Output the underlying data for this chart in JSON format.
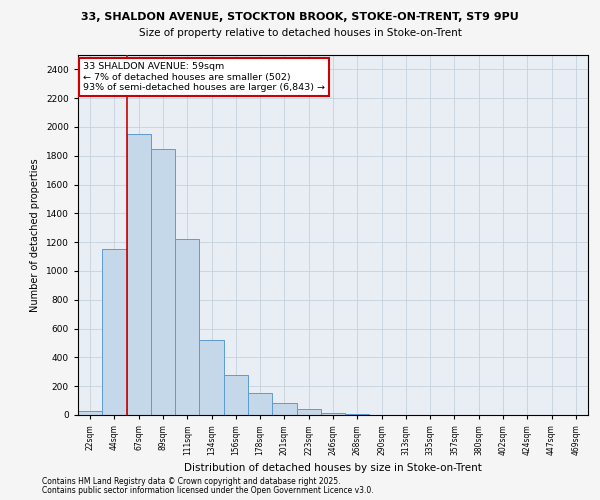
{
  "title_line1": "33, SHALDON AVENUE, STOCKTON BROOK, STOKE-ON-TRENT, ST9 9PU",
  "title_line2": "Size of property relative to detached houses in Stoke-on-Trent",
  "xlabel": "Distribution of detached houses by size in Stoke-on-Trent",
  "ylabel": "Number of detached properties",
  "footnote1": "Contains HM Land Registry data © Crown copyright and database right 2025.",
  "footnote2": "Contains public sector information licensed under the Open Government Licence v3.0.",
  "annotation_line1": "33 SHALDON AVENUE: 59sqm",
  "annotation_line2": "← 7% of detached houses are smaller (502)",
  "annotation_line3": "93% of semi-detached houses are larger (6,843) →",
  "bar_color": "#c5d8ea",
  "bar_edge_color": "#5b9bd5",
  "highlight_color": "#cc0000",
  "annotation_box_color": "#ffffff",
  "annotation_box_edge": "#cc0000",
  "categories": [
    "22sqm",
    "44sqm",
    "67sqm",
    "89sqm",
    "111sqm",
    "134sqm",
    "156sqm",
    "178sqm",
    "201sqm",
    "223sqm",
    "246sqm",
    "268sqm",
    "290sqm",
    "313sqm",
    "335sqm",
    "357sqm",
    "380sqm",
    "402sqm",
    "424sqm",
    "447sqm",
    "469sqm"
  ],
  "values": [
    30,
    1150,
    1950,
    1850,
    1225,
    520,
    280,
    155,
    85,
    40,
    15,
    8,
    3,
    2,
    1,
    1,
    0,
    0,
    0,
    0,
    0
  ],
  "ylim": [
    0,
    2500
  ],
  "yticks": [
    0,
    200,
    400,
    600,
    800,
    1000,
    1200,
    1400,
    1600,
    1800,
    2000,
    2200,
    2400
  ],
  "red_line_x": 2.0,
  "bg_color": "#e8eef4",
  "grid_color": "#c0ccd8",
  "fig_bg": "#f5f5f5"
}
